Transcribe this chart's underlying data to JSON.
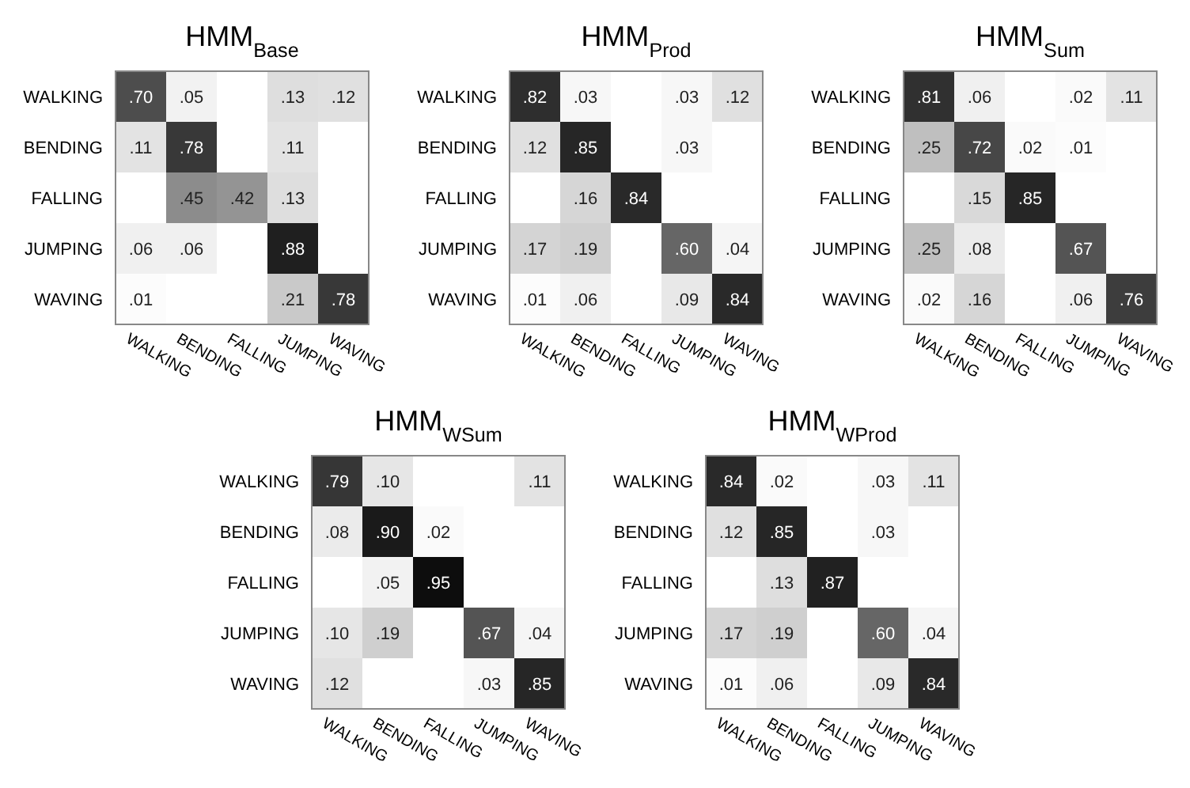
{
  "chart_data": [
    {
      "type": "heatmap",
      "title": "HMM$_{Base}$",
      "categories": [
        "WALKING",
        "BENDING",
        "FALLING",
        "JUMPING",
        "WAVING"
      ],
      "y_categories": [
        "WALKING",
        "BENDING",
        "FALLING",
        "JUMPING",
        "WAVING"
      ],
      "cells": [
        [
          0.7,
          0.05,
          null,
          0.13,
          0.12
        ],
        [
          0.11,
          0.78,
          null,
          0.11,
          null
        ],
        [
          null,
          0.45,
          0.42,
          0.13,
          null
        ],
        [
          0.06,
          0.06,
          null,
          0.88,
          null
        ],
        [
          0.01,
          null,
          null,
          0.21,
          0.78
        ]
      ],
      "cell_labels": [
        [
          ".70",
          ".05",
          null,
          ".13",
          ".12"
        ],
        [
          ".11",
          ".78",
          null,
          ".11",
          null
        ],
        [
          null,
          ".45",
          ".42",
          ".13",
          null
        ],
        [
          ".06",
          ".06",
          null,
          ".88",
          null
        ],
        [
          ".01",
          null,
          null,
          ".21",
          ".78"
        ]
      ]
    },
    {
      "type": "heatmap",
      "title": "HMM$_{Prod}$",
      "categories": [
        "WALKING",
        "BENDING",
        "FALLING",
        "JUMPING",
        "WAVING"
      ],
      "y_categories": [
        "WALKING",
        "BENDING",
        "FALLING",
        "JUMPING",
        "WAVING"
      ],
      "cells": [
        [
          0.82,
          0.03,
          null,
          0.03,
          0.12
        ],
        [
          0.12,
          0.85,
          null,
          0.03,
          null
        ],
        [
          null,
          0.16,
          0.84,
          null,
          null
        ],
        [
          0.17,
          0.19,
          null,
          0.6,
          0.04
        ],
        [
          0.01,
          0.06,
          null,
          0.09,
          0.84
        ]
      ],
      "cell_labels": [
        [
          ".82",
          ".03",
          null,
          ".03",
          ".12"
        ],
        [
          ".12",
          ".85",
          null,
          ".03",
          null
        ],
        [
          null,
          ".16",
          ".84",
          null,
          null
        ],
        [
          ".17",
          ".19",
          null,
          ".60",
          ".04"
        ],
        [
          ".01",
          ".06",
          null,
          ".09",
          ".84"
        ]
      ]
    },
    {
      "type": "heatmap",
      "title": "HMM$_{Sum}$",
      "categories": [
        "WALKING",
        "BENDING",
        "FALLING",
        "JUMPING",
        "WAVING"
      ],
      "y_categories": [
        "WALKING",
        "BENDING",
        "FALLING",
        "JUMPING",
        "WAVING"
      ],
      "cells": [
        [
          0.81,
          0.06,
          null,
          0.02,
          0.11
        ],
        [
          0.25,
          0.72,
          0.02,
          0.01,
          null
        ],
        [
          null,
          0.15,
          0.85,
          null,
          null
        ],
        [
          0.25,
          0.08,
          null,
          0.67,
          null
        ],
        [
          0.02,
          0.16,
          null,
          0.06,
          0.76
        ]
      ],
      "cell_labels": [
        [
          ".81",
          ".06",
          null,
          ".02",
          ".11"
        ],
        [
          ".25",
          ".72",
          ".02",
          ".01",
          null
        ],
        [
          null,
          ".15",
          ".85",
          null,
          null
        ],
        [
          ".25",
          ".08",
          null,
          ".67",
          null
        ],
        [
          ".02",
          ".16",
          null,
          ".06",
          ".76"
        ]
      ]
    },
    {
      "type": "heatmap",
      "title": "HMM$_{WSum}$",
      "categories": [
        "WALKING",
        "BENDING",
        "FALLING",
        "JUMPING",
        "WAVING"
      ],
      "y_categories": [
        "WALKING",
        "BENDING",
        "FALLING",
        "JUMPING",
        "WAVING"
      ],
      "cells": [
        [
          0.79,
          0.1,
          null,
          null,
          0.11
        ],
        [
          0.08,
          0.9,
          0.02,
          null,
          null
        ],
        [
          null,
          0.05,
          0.95,
          null,
          null
        ],
        [
          0.1,
          0.19,
          null,
          0.67,
          0.04
        ],
        [
          0.12,
          null,
          null,
          0.03,
          0.85
        ]
      ],
      "cell_labels": [
        [
          ".79",
          ".10",
          null,
          null,
          ".11"
        ],
        [
          ".08",
          ".90",
          ".02",
          null,
          null
        ],
        [
          null,
          ".05",
          ".95",
          null,
          null
        ],
        [
          ".10",
          ".19",
          null,
          ".67",
          ".04"
        ],
        [
          ".12",
          null,
          null,
          ".03",
          ".85"
        ]
      ]
    },
    {
      "type": "heatmap",
      "title": "HMM$_{WProd}$",
      "categories": [
        "WALKING",
        "BENDING",
        "FALLING",
        "JUMPING",
        "WAVING"
      ],
      "y_categories": [
        "WALKING",
        "BENDING",
        "FALLING",
        "JUMPING",
        "WAVING"
      ],
      "cells": [
        [
          0.84,
          0.02,
          null,
          0.03,
          0.11
        ],
        [
          0.12,
          0.85,
          null,
          0.03,
          null
        ],
        [
          null,
          0.13,
          0.87,
          null,
          null
        ],
        [
          0.17,
          0.19,
          null,
          0.6,
          0.04
        ],
        [
          0.01,
          0.06,
          null,
          0.09,
          0.84
        ]
      ],
      "cell_labels": [
        [
          ".84",
          ".02",
          null,
          ".03",
          ".11"
        ],
        [
          ".12",
          ".85",
          null,
          ".03",
          null
        ],
        [
          null,
          ".13",
          ".87",
          null,
          null
        ],
        [
          ".17",
          ".19",
          null,
          ".60",
          ".04"
        ],
        [
          ".01",
          ".06",
          null,
          ".09",
          ".84"
        ]
      ]
    }
  ]
}
